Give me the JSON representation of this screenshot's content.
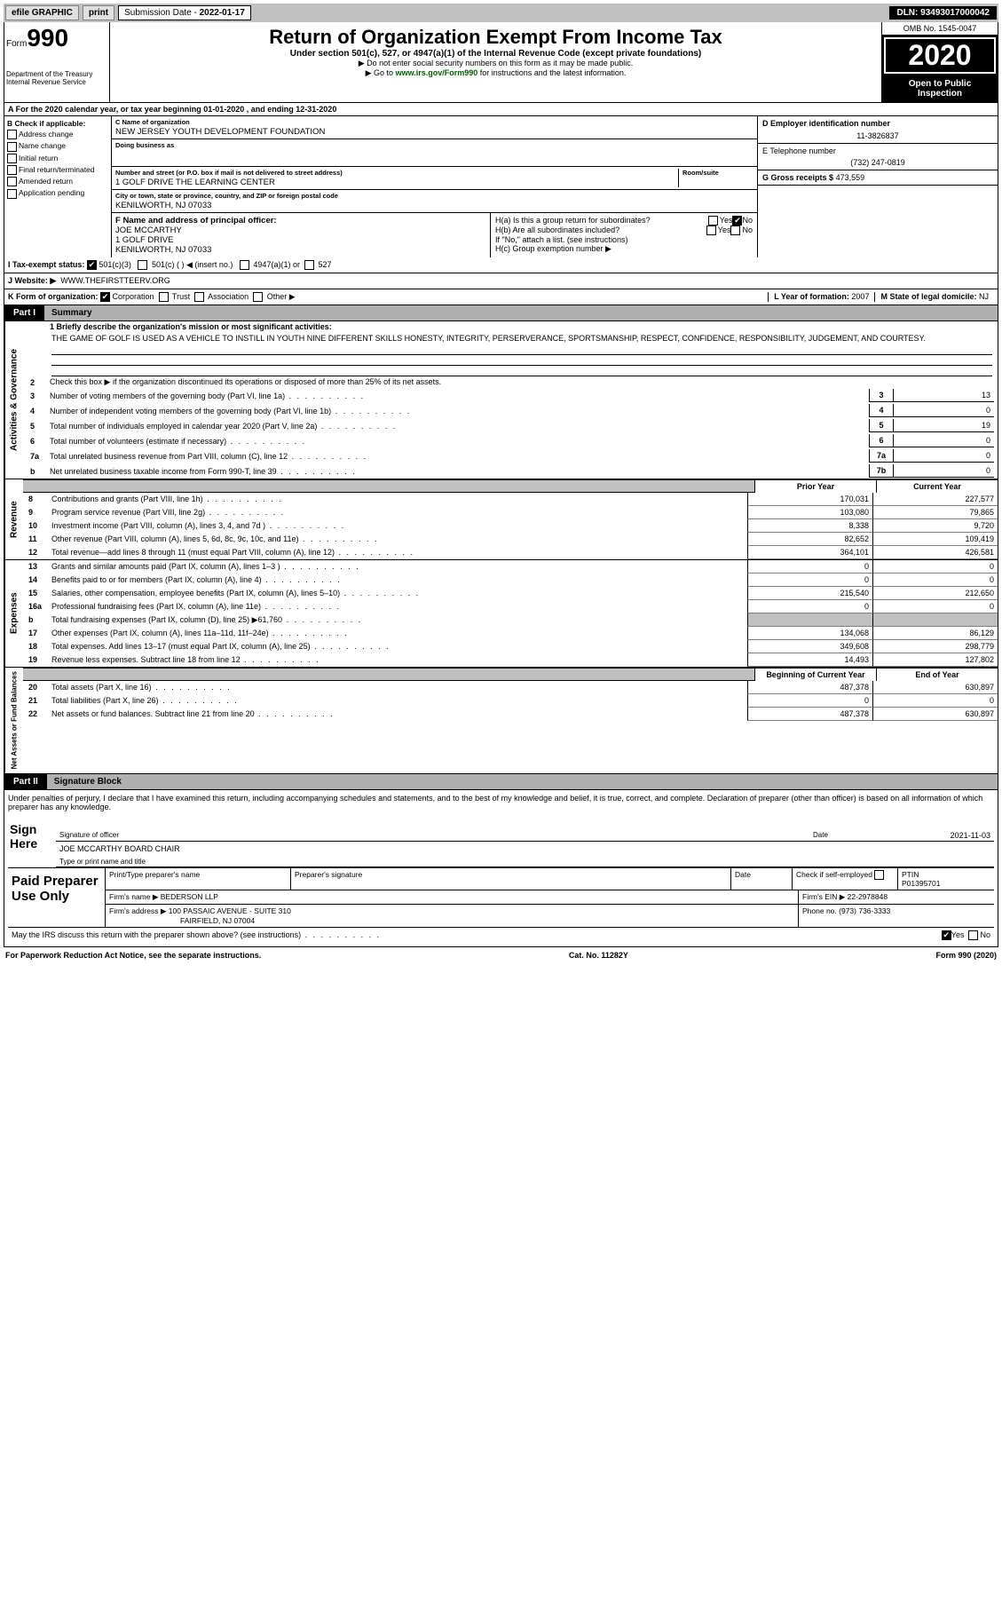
{
  "topbar": {
    "efile": "efile GRAPHIC",
    "print": "print",
    "submission_label": "Submission Date - ",
    "submission_date": "2022-01-17",
    "dln": "DLN: 93493017000042"
  },
  "header": {
    "form_prefix": "Form",
    "form_num": "990",
    "dept1": "Department of the Treasury",
    "dept2": "Internal Revenue Service",
    "title": "Return of Organization Exempt From Income Tax",
    "sub": "Under section 501(c), 527, or 4947(a)(1) of the Internal Revenue Code (except private foundations)",
    "note1": "▶ Do not enter social security numbers on this form as it may be made public.",
    "note2_pre": "▶ Go to ",
    "note2_link": "www.irs.gov/Form990",
    "note2_post": " for instructions and the latest information.",
    "omb": "OMB No. 1545-0047",
    "year": "2020",
    "inspect1": "Open to Public",
    "inspect2": "Inspection"
  },
  "rowA": "A For the 2020 calendar year, or tax year beginning 01-01-2020   , and ending 12-31-2020",
  "colB": {
    "title": "B Check if applicable:",
    "items": [
      "Address change",
      "Name change",
      "Initial return",
      "Final return/terminated",
      "Amended return",
      "Application pending"
    ]
  },
  "colC": {
    "name_label": "C Name of organization",
    "name": "NEW JERSEY YOUTH DEVELOPMENT FOUNDATION",
    "dba_label": "Doing business as",
    "dba": "",
    "addr_label": "Number and street (or P.O. box if mail is not delivered to street address)",
    "addr": "1 GOLF DRIVE THE LEARNING CENTER",
    "suite_label": "Room/suite",
    "city_label": "City or town, state or province, country, and ZIP or foreign postal code",
    "city": "KENILWORTH, NJ  07033",
    "officer_label": "F Name and address of principal officer:",
    "officer_name": "JOE MCCARTHY",
    "officer_addr1": "1 GOLF DRIVE",
    "officer_addr2": "KENILWORTH, NJ  07033"
  },
  "colD": {
    "ein_label": "D Employer identification number",
    "ein": "11-3826837",
    "tel_label": "E Telephone number",
    "tel": "(732) 247-0819",
    "gross_label": "G Gross receipts $",
    "gross": "473,559",
    "ha": "H(a)  Is this a group return for subordinates?",
    "hb": "H(b)  Are all subordinates included?",
    "hb_note": "If \"No,\" attach a list. (see instructions)",
    "hc": "H(c)  Group exemption number ▶",
    "yes": "Yes",
    "no": "No"
  },
  "tax": {
    "label": "I   Tax-exempt status:",
    "o1": "501(c)(3)",
    "o2": "501(c) (  ) ◀ (insert no.)",
    "o3": "4947(a)(1) or",
    "o4": "527"
  },
  "web": {
    "label": "J   Website: ▶",
    "value": "WWW.THEFIRSTTEERV.ORG"
  },
  "k": {
    "label": "K Form of organization:",
    "corp": "Corporation",
    "trust": "Trust",
    "assoc": "Association",
    "other": "Other ▶",
    "year_label": "L Year of formation:",
    "year": "2007",
    "state_label": "M State of legal domicile:",
    "state": "NJ"
  },
  "part1": {
    "tag": "Part I",
    "title": "Summary",
    "brief_label": "1   Briefly describe the organization's mission or most significant activities:",
    "mission": "THE GAME OF GOLF IS USED AS A VEHICLE TO INSTILL IN YOUTH NINE DIFFERENT SKILLS HONESTY, INTEGRITY, PERSERVERANCE, SPORTSMANSHIP, RESPECT, CONFIDENCE, RESPONSIBILITY, JUDGEMENT, AND COURTESY.",
    "line2": "Check this box ▶        if the organization discontinued its operations or disposed of more than 25% of its net assets.",
    "gov": [
      {
        "n": "3",
        "t": "Number of voting members of the governing body (Part VI, line 1a)",
        "k": "3",
        "v": "13"
      },
      {
        "n": "4",
        "t": "Number of independent voting members of the governing body (Part VI, line 1b)",
        "k": "4",
        "v": "0"
      },
      {
        "n": "5",
        "t": "Total number of individuals employed in calendar year 2020 (Part V, line 2a)",
        "k": "5",
        "v": "19"
      },
      {
        "n": "6",
        "t": "Total number of volunteers (estimate if necessary)",
        "k": "6",
        "v": "0"
      },
      {
        "n": "7a",
        "t": "Total unrelated business revenue from Part VIII, column (C), line 12",
        "k": "7a",
        "v": "0"
      },
      {
        "n": "b",
        "t": "Net unrelated business taxable income from Form 990-T, line 39",
        "k": "7b",
        "v": "0"
      }
    ],
    "prior": "Prior Year",
    "current": "Current Year",
    "rev": [
      {
        "n": "8",
        "t": "Contributions and grants (Part VIII, line 1h)",
        "p": "170,031",
        "c": "227,577"
      },
      {
        "n": "9",
        "t": "Program service revenue (Part VIII, line 2g)",
        "p": "103,080",
        "c": "79,865"
      },
      {
        "n": "10",
        "t": "Investment income (Part VIII, column (A), lines 3, 4, and 7d )",
        "p": "8,338",
        "c": "9,720"
      },
      {
        "n": "11",
        "t": "Other revenue (Part VIII, column (A), lines 5, 6d, 8c, 9c, 10c, and 11e)",
        "p": "82,652",
        "c": "109,419"
      },
      {
        "n": "12",
        "t": "Total revenue—add lines 8 through 11 (must equal Part VIII, column (A), line 12)",
        "p": "364,101",
        "c": "426,581"
      }
    ],
    "exp": [
      {
        "n": "13",
        "t": "Grants and similar amounts paid (Part IX, column (A), lines 1–3 )",
        "p": "0",
        "c": "0"
      },
      {
        "n": "14",
        "t": "Benefits paid to or for members (Part IX, column (A), line 4)",
        "p": "0",
        "c": "0"
      },
      {
        "n": "15",
        "t": "Salaries, other compensation, employee benefits (Part IX, column (A), lines 5–10)",
        "p": "215,540",
        "c": "212,650"
      },
      {
        "n": "16a",
        "t": "Professional fundraising fees (Part IX, column (A), line 11e)",
        "p": "0",
        "c": "0"
      },
      {
        "n": "b",
        "t": "Total fundraising expenses (Part IX, column (D), line 25) ▶61,760",
        "p": "",
        "c": "",
        "shade": true
      },
      {
        "n": "17",
        "t": "Other expenses (Part IX, column (A), lines 11a–11d, 11f–24e)",
        "p": "134,068",
        "c": "86,129"
      },
      {
        "n": "18",
        "t": "Total expenses. Add lines 13–17 (must equal Part IX, column (A), line 25)",
        "p": "349,608",
        "c": "298,779"
      },
      {
        "n": "19",
        "t": "Revenue less expenses. Subtract line 18 from line 12",
        "p": "14,493",
        "c": "127,802"
      }
    ],
    "boy": "Beginning of Current Year",
    "eoy": "End of Year",
    "net": [
      {
        "n": "20",
        "t": "Total assets (Part X, line 16)",
        "p": "487,378",
        "c": "630,897"
      },
      {
        "n": "21",
        "t": "Total liabilities (Part X, line 26)",
        "p": "0",
        "c": "0"
      },
      {
        "n": "22",
        "t": "Net assets or fund balances. Subtract line 21 from line 20",
        "p": "487,378",
        "c": "630,897"
      }
    ]
  },
  "part2": {
    "tag": "Part II",
    "title": "Signature Block",
    "decl": "Under penalties of perjury, I declare that I have examined this return, including accompanying schedules and statements, and to the best of my knowledge and belief, it is true, correct, and complete. Declaration of preparer (other than officer) is based on all information of which preparer has any knowledge.",
    "sign": "Sign Here",
    "sig_officer": "Signature of officer",
    "sig_date": "Date",
    "sig_date_val": "2021-11-03",
    "sig_name": "JOE MCCARTHY  BOARD CHAIR",
    "sig_name_lbl": "Type or print name and title",
    "paid": "Paid Preparer Use Only",
    "pt_name": "Print/Type preparer's name",
    "pt_sig": "Preparer's signature",
    "pt_date": "Date",
    "pt_check": "Check        if self-employed",
    "ptin_lbl": "PTIN",
    "ptin": "P01395701",
    "firm_name_lbl": "Firm's name    ▶",
    "firm_name": "BEDERSON LLP",
    "firm_ein_lbl": "Firm's EIN ▶",
    "firm_ein": "22-2978848",
    "firm_addr_lbl": "Firm's address ▶",
    "firm_addr1": "100 PASSAIC AVENUE - SUITE 310",
    "firm_addr2": "FAIRFIELD, NJ  07004",
    "phone_lbl": "Phone no.",
    "phone": "(973) 736-3333",
    "discuss": "May the IRS discuss this return with the preparer shown above? (see instructions)",
    "yes": "Yes",
    "no": "No"
  },
  "footer": {
    "left": "For Paperwork Reduction Act Notice, see the separate instructions.",
    "mid": "Cat. No. 11282Y",
    "right": "Form 990 (2020)"
  },
  "rot": {
    "gov": "Activities & Governance",
    "rev": "Revenue",
    "exp": "Expenses",
    "net": "Net Assets or Fund Balances"
  }
}
